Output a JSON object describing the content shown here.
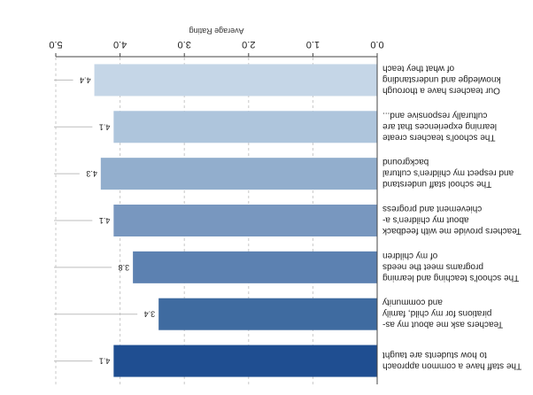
{
  "chart_data": {
    "type": "bar",
    "orientation": "horizontal",
    "rendering": "rotated 180 degrees",
    "title": "",
    "xlabel": "Average Rating",
    "ylabel": "",
    "xlim": [
      0,
      5
    ],
    "xticks": [
      "0.0",
      "1.0",
      "2.0",
      "3.0",
      "4.0",
      "5.0"
    ],
    "grid": "vertical dashed",
    "legend": "none",
    "categories": [
      [
        "Our teachers have a thorough",
        "knowledge and understanding",
        "of what they teach"
      ],
      [
        "The school's teachers create",
        "learning experiences that are",
        "culturally responsive and..."
      ],
      [
        "The school staff understand",
        "and respect my children's cultural",
        "background"
      ],
      [
        "Teachers provide me with feedback",
        "about my children's a-",
        "chievement and progress"
      ],
      [
        "The school's teaching and learning",
        "programs meet the needs",
        "of my children"
      ],
      [
        "Teachers ask me about my as-",
        "pirations for my child, family",
        "and community"
      ],
      [
        "The staff have a common approach",
        "to how students are taught"
      ]
    ],
    "values": [
      4.4,
      4.1,
      4.3,
      4.1,
      3.8,
      3.4,
      4.1
    ],
    "data_labels": [
      "4.4",
      "4.1",
      "4.3",
      "4.1",
      "3.8",
      "3.4",
      "4.1"
    ],
    "colors": [
      "#c5d6e7",
      "#aec5dc",
      "#92aecd",
      "#7897bf",
      "#5c81b1",
      "#3f6ba0",
      "#1f4e91"
    ],
    "axis_color": "#444444",
    "grid_color": "#c8c8c8"
  }
}
